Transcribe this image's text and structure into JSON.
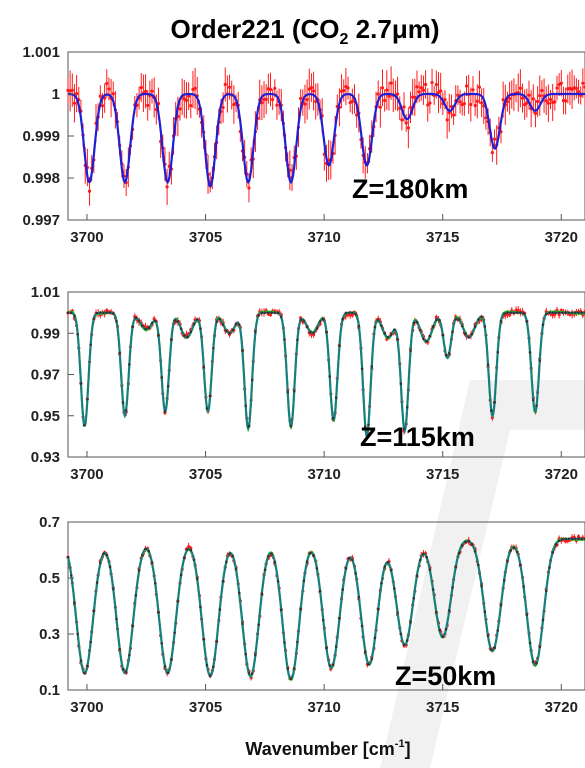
{
  "chart_data": [
    {
      "type": "line",
      "title": "Order221 (CO",
      "title_sub": "2",
      "title_tail": " 2.7μm)",
      "annotation": "Z=180km",
      "xlim": [
        3699.2,
        3721
      ],
      "ylim": [
        0.997,
        1.001
      ],
      "xticks": [
        3700,
        3705,
        3710,
        3715,
        3720
      ],
      "xtick_labels": [
        "3700",
        "3705",
        "3710",
        "3715",
        "3720"
      ],
      "yticks": [
        0.997,
        0.998,
        0.999,
        1,
        1.001
      ],
      "ytick_labels": [
        "0.997",
        "0.998",
        "0.999",
        "1",
        "1.001"
      ],
      "base": 1.0,
      "lines": [
        {
          "x": 3700.1,
          "depth": 0.0021,
          "w": 0.22
        },
        {
          "x": 3701.6,
          "depth": 0.0021,
          "w": 0.22
        },
        {
          "x": 3703.4,
          "depth": 0.0021,
          "w": 0.22
        },
        {
          "x": 3705.2,
          "depth": 0.0022,
          "w": 0.22
        },
        {
          "x": 3706.8,
          "depth": 0.0021,
          "w": 0.22
        },
        {
          "x": 3708.6,
          "depth": 0.0021,
          "w": 0.22
        },
        {
          "x": 3710.2,
          "depth": 0.0017,
          "w": 0.22
        },
        {
          "x": 3711.8,
          "depth": 0.0017,
          "w": 0.22
        },
        {
          "x": 3713.5,
          "depth": 0.0006,
          "w": 0.22
        },
        {
          "x": 3715.3,
          "depth": 0.0004,
          "w": 0.22
        },
        {
          "x": 3717.2,
          "depth": 0.0013,
          "w": 0.22
        },
        {
          "x": 3718.9,
          "depth": 0.0004,
          "w": 0.22
        }
      ],
      "series": [
        {
          "role": "observed",
          "color": "#ff1a1a",
          "noise": 0.00035
        },
        {
          "role": "model",
          "color": "#1f1fd6"
        }
      ]
    },
    {
      "type": "line",
      "annotation": "Z=115km",
      "xlim": [
        3699.2,
        3721
      ],
      "ylim": [
        0.93,
        1.01
      ],
      "xticks": [
        3700,
        3705,
        3710,
        3715,
        3720
      ],
      "xtick_labels": [
        "3700",
        "3705",
        "3710",
        "3715",
        "3720"
      ],
      "yticks": [
        0.93,
        0.95,
        0.97,
        0.99,
        1.01
      ],
      "ytick_labels": [
        "0.93",
        "0.95",
        "0.97",
        "0.99",
        "1.01"
      ],
      "base": 1.0,
      "lines": [
        {
          "x": 3699.9,
          "depth": 0.055,
          "w": 0.16
        },
        {
          "x": 3701.6,
          "depth": 0.05,
          "w": 0.16
        },
        {
          "x": 3703.3,
          "depth": 0.048,
          "w": 0.16
        },
        {
          "x": 3705.1,
          "depth": 0.048,
          "w": 0.16
        },
        {
          "x": 3706.8,
          "depth": 0.056,
          "w": 0.16
        },
        {
          "x": 3708.6,
          "depth": 0.055,
          "w": 0.16
        },
        {
          "x": 3710.4,
          "depth": 0.052,
          "w": 0.16
        },
        {
          "x": 3711.8,
          "depth": 0.06,
          "w": 0.16
        },
        {
          "x": 3713.4,
          "depth": 0.057,
          "w": 0.16
        },
        {
          "x": 3715.2,
          "depth": 0.022,
          "w": 0.16
        },
        {
          "x": 3717.1,
          "depth": 0.05,
          "w": 0.16
        },
        {
          "x": 3718.9,
          "depth": 0.048,
          "w": 0.16
        },
        {
          "x": 3702.5,
          "depth": 0.008,
          "w": 0.25
        },
        {
          "x": 3704.2,
          "depth": 0.012,
          "w": 0.25
        },
        {
          "x": 3706.0,
          "depth": 0.01,
          "w": 0.25
        },
        {
          "x": 3709.5,
          "depth": 0.01,
          "w": 0.25
        },
        {
          "x": 3712.7,
          "depth": 0.012,
          "w": 0.25
        },
        {
          "x": 3714.3,
          "depth": 0.014,
          "w": 0.25
        },
        {
          "x": 3716.1,
          "depth": 0.012,
          "w": 0.25
        }
      ],
      "series": [
        {
          "role": "observed",
          "color": "#ff1a1a",
          "noise": 0.0015
        },
        {
          "role": "model",
          "color": "#24c820"
        },
        {
          "role": "fit",
          "color": "#1a7a8a"
        }
      ]
    },
    {
      "type": "line",
      "annotation": "Z=50km",
      "xlim": [
        3699.2,
        3721
      ],
      "ylim": [
        0.1,
        0.7
      ],
      "xticks": [
        3700,
        3705,
        3710,
        3715,
        3720
      ],
      "xtick_labels": [
        "3700",
        "3705",
        "3710",
        "3715",
        "3720"
      ],
      "yticks": [
        0.1,
        0.3,
        0.5,
        0.7
      ],
      "ytick_labels": [
        "0.1",
        "0.3",
        "0.5",
        "0.7"
      ],
      "xlabel": "Wavenumber [cm",
      "xlabel_sup": "-1",
      "xlabel_tail": "]",
      "base": 0.64,
      "lines": [
        {
          "x": 3699.9,
          "depth": 0.48,
          "w": 0.35
        },
        {
          "x": 3701.6,
          "depth": 0.48,
          "w": 0.35
        },
        {
          "x": 3703.4,
          "depth": 0.48,
          "w": 0.35
        },
        {
          "x": 3705.2,
          "depth": 0.49,
          "w": 0.35
        },
        {
          "x": 3706.9,
          "depth": 0.49,
          "w": 0.35
        },
        {
          "x": 3708.6,
          "depth": 0.5,
          "w": 0.35
        },
        {
          "x": 3710.3,
          "depth": 0.46,
          "w": 0.35
        },
        {
          "x": 3711.9,
          "depth": 0.45,
          "w": 0.35
        },
        {
          "x": 3713.4,
          "depth": 0.38,
          "w": 0.35
        },
        {
          "x": 3715.0,
          "depth": 0.35,
          "w": 0.35
        },
        {
          "x": 3717.1,
          "depth": 0.4,
          "w": 0.35
        },
        {
          "x": 3718.9,
          "depth": 0.45,
          "w": 0.35
        }
      ],
      "series": [
        {
          "role": "observed",
          "color": "#ff1a1a",
          "noise": 0.01
        },
        {
          "role": "model",
          "color": "#24c820"
        },
        {
          "role": "fit",
          "color": "#1a7a8a"
        }
      ]
    }
  ]
}
